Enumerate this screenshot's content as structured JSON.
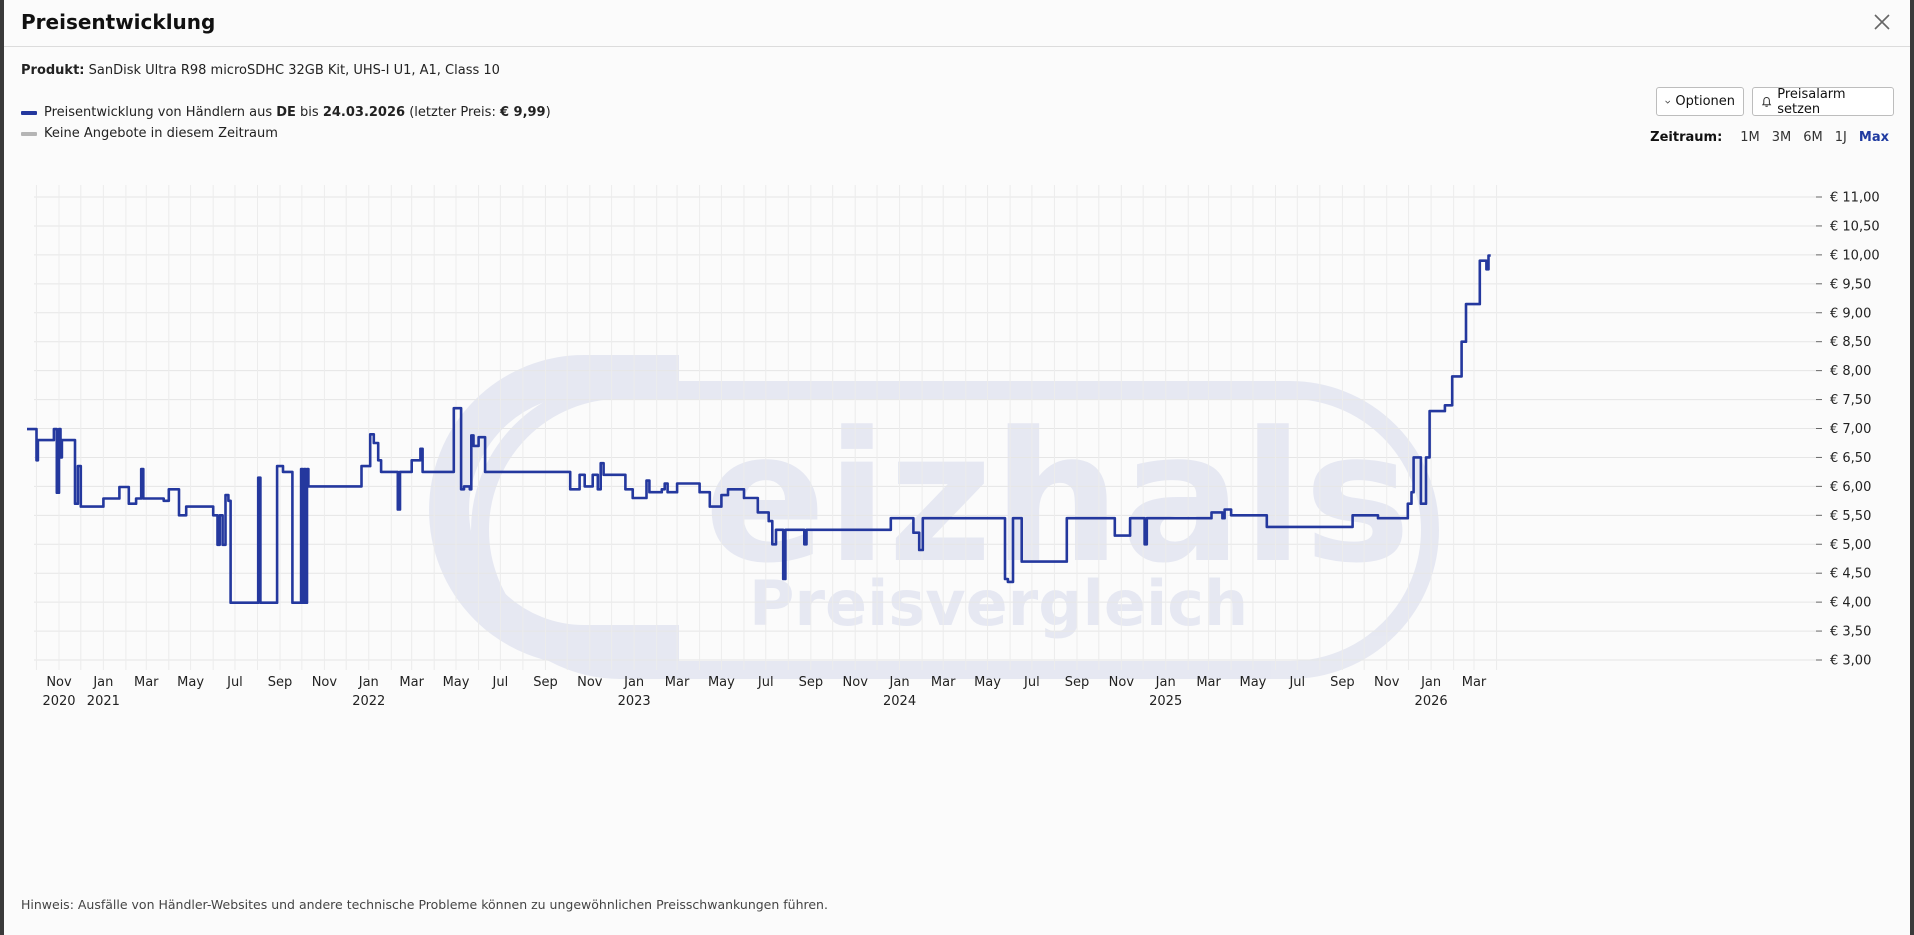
{
  "dialog": {
    "title": "Preisentwicklung",
    "close_icon": "close-icon"
  },
  "product": {
    "label": "Produkt:",
    "name": "SanDisk Ultra R98 microSDHC 32GB Kit, UHS-I U1, A1, Class 10"
  },
  "legend": {
    "line1_prefix": "Preisentwicklung von Händlern aus ",
    "line1_country": "DE",
    "line1_mid": " bis ",
    "line1_date": "24.03.2026",
    "line1_suffix_a": " (letzter Preis: ",
    "line1_price": "€ 9,99",
    "line1_suffix_b": ")",
    "line2": "Keine Angebote in diesem Zeitraum",
    "color_price": "#24389e",
    "color_none": "#b5b5b5"
  },
  "buttons": {
    "options_label": "Optionen",
    "alarm_label": "Preisalarm setzen"
  },
  "zeitraum": {
    "label": "Zeitraum:",
    "options": [
      "1M",
      "3M",
      "6M",
      "1J",
      "Max"
    ],
    "active": "Max"
  },
  "watermark": {
    "brand": "eizhals",
    "sub": "Preisvergleich"
  },
  "hint": "Hinweis: Ausfälle von Händler-Websites und andere technische Probleme können zu ungewöhnlichen Preisschwankungen führen.",
  "chart_data": {
    "type": "line",
    "title": "",
    "xlabel": "",
    "ylabel": "",
    "ylim": [
      3.0,
      11.0
    ],
    "yticks": [
      "€ 3,00",
      "€ 3,50",
      "€ 4,00",
      "€ 4,50",
      "€ 5,00",
      "€ 5,50",
      "€ 6,00",
      "€ 6,50",
      "€ 7,00",
      "€ 7,50",
      "€ 8,00",
      "€ 8,50",
      "€ 9,00",
      "€ 9,50",
      "€ 10,00",
      "€ 10,50",
      "€ 11,00"
    ],
    "xticks": [
      {
        "month": "Nov",
        "year": "2020"
      },
      {
        "month": "Jan",
        "year": "2021"
      },
      {
        "month": "Mar",
        "year": ""
      },
      {
        "month": "May",
        "year": ""
      },
      {
        "month": "Jul",
        "year": ""
      },
      {
        "month": "Sep",
        "year": ""
      },
      {
        "month": "Nov",
        "year": ""
      },
      {
        "month": "Jan",
        "year": "2022"
      },
      {
        "month": "Mar",
        "year": ""
      },
      {
        "month": "May",
        "year": ""
      },
      {
        "month": "Jul",
        "year": ""
      },
      {
        "month": "Sep",
        "year": ""
      },
      {
        "month": "Nov",
        "year": ""
      },
      {
        "month": "Jan",
        "year": "2023"
      },
      {
        "month": "Mar",
        "year": ""
      },
      {
        "month": "May",
        "year": ""
      },
      {
        "month": "Jul",
        "year": ""
      },
      {
        "month": "Sep",
        "year": ""
      },
      {
        "month": "Nov",
        "year": ""
      },
      {
        "month": "Jan",
        "year": "2024"
      },
      {
        "month": "Mar",
        "year": ""
      },
      {
        "month": "May",
        "year": ""
      },
      {
        "month": "Jul",
        "year": ""
      },
      {
        "month": "Sep",
        "year": ""
      },
      {
        "month": "Nov",
        "year": ""
      },
      {
        "month": "Jan",
        "year": "2025"
      },
      {
        "month": "Mar",
        "year": ""
      },
      {
        "month": "May",
        "year": ""
      },
      {
        "month": "Jul",
        "year": ""
      },
      {
        "month": "Sep",
        "year": ""
      },
      {
        "month": "Nov",
        "year": ""
      },
      {
        "month": "Jan",
        "year": "2026"
      },
      {
        "month": "Mar",
        "year": ""
      }
    ],
    "grid": true,
    "series": [
      {
        "values": [
          [
            "2020-09-18",
            6.99
          ],
          [
            "2020-09-29",
            6.99
          ],
          [
            "2020-10-01",
            6.45
          ],
          [
            "2020-10-03",
            6.8
          ],
          [
            "2020-10-22",
            6.8
          ],
          [
            "2020-10-25",
            6.99
          ],
          [
            "2020-10-29",
            5.89
          ],
          [
            "2020-11-01",
            6.99
          ],
          [
            "2020-11-03",
            6.5
          ],
          [
            "2020-11-05",
            6.8
          ],
          [
            "2020-11-20",
            6.8
          ],
          [
            "2020-11-23",
            5.7
          ],
          [
            "2020-11-27",
            6.35
          ],
          [
            "2020-12-01",
            5.65
          ],
          [
            "2020-12-30",
            5.65
          ],
          [
            "2021-01-01",
            5.79
          ],
          [
            "2021-01-20",
            5.79
          ],
          [
            "2021-01-23",
            5.99
          ],
          [
            "2021-02-02",
            5.99
          ],
          [
            "2021-02-05",
            5.7
          ],
          [
            "2021-02-15",
            5.79
          ],
          [
            "2021-02-22",
            6.3
          ],
          [
            "2021-02-25",
            5.79
          ],
          [
            "2021-03-20",
            5.79
          ],
          [
            "2021-03-25",
            5.75
          ],
          [
            "2021-04-01",
            5.95
          ],
          [
            "2021-04-12",
            5.95
          ],
          [
            "2021-04-15",
            5.5
          ],
          [
            "2021-04-25",
            5.65
          ],
          [
            "2021-05-25",
            5.65
          ],
          [
            "2021-06-01",
            5.5
          ],
          [
            "2021-06-07",
            4.99
          ],
          [
            "2021-06-10",
            5.5
          ],
          [
            "2021-06-14",
            4.99
          ],
          [
            "2021-06-18",
            5.85
          ],
          [
            "2021-06-22",
            5.75
          ],
          [
            "2021-06-25",
            3.99
          ],
          [
            "2021-07-30",
            3.99
          ],
          [
            "2021-08-02",
            6.15
          ],
          [
            "2021-08-05",
            3.99
          ],
          [
            "2021-08-25",
            3.99
          ],
          [
            "2021-08-28",
            6.35
          ],
          [
            "2021-09-05",
            6.25
          ],
          [
            "2021-09-15",
            6.25
          ],
          [
            "2021-09-18",
            3.99
          ],
          [
            "2021-09-28",
            3.99
          ],
          [
            "2021-09-30",
            6.3
          ],
          [
            "2021-10-02",
            3.99
          ],
          [
            "2021-10-04",
            6.3
          ],
          [
            "2021-10-06",
            3.99
          ],
          [
            "2021-10-08",
            6.3
          ],
          [
            "2021-10-10",
            6.0
          ],
          [
            "2021-12-20",
            6.0
          ],
          [
            "2021-12-22",
            6.35
          ],
          [
            "2021-12-30",
            6.35
          ],
          [
            "2022-01-03",
            6.9
          ],
          [
            "2022-01-08",
            6.75
          ],
          [
            "2022-01-14",
            6.45
          ],
          [
            "2022-01-18",
            6.25
          ],
          [
            "2022-01-25",
            6.25
          ],
          [
            "2022-02-08",
            6.25
          ],
          [
            "2022-02-10",
            5.6
          ],
          [
            "2022-02-13",
            6.25
          ],
          [
            "2022-02-25",
            6.25
          ],
          [
            "2022-03-01",
            6.45
          ],
          [
            "2022-03-10",
            6.45
          ],
          [
            "2022-03-13",
            6.65
          ],
          [
            "2022-03-16",
            6.25
          ],
          [
            "2022-04-25",
            6.25
          ],
          [
            "2022-04-28",
            7.35
          ],
          [
            "2022-05-05",
            7.35
          ],
          [
            "2022-05-08",
            5.95
          ],
          [
            "2022-05-12",
            6.0
          ],
          [
            "2022-05-20",
            5.95
          ],
          [
            "2022-05-22",
            6.88
          ],
          [
            "2022-05-25",
            6.7
          ],
          [
            "2022-06-01",
            6.85
          ],
          [
            "2022-06-06",
            6.85
          ],
          [
            "2022-06-10",
            6.25
          ],
          [
            "2022-07-01",
            6.25
          ],
          [
            "2022-07-10",
            6.25
          ],
          [
            "2022-07-20",
            6.25
          ],
          [
            "2022-10-01",
            6.25
          ],
          [
            "2022-10-05",
            5.95
          ],
          [
            "2022-10-15",
            5.95
          ],
          [
            "2022-10-18",
            6.2
          ],
          [
            "2022-10-25",
            6.0
          ],
          [
            "2022-11-05",
            6.2
          ],
          [
            "2022-11-12",
            5.95
          ],
          [
            "2022-11-16",
            6.4
          ],
          [
            "2022-11-20",
            6.2
          ],
          [
            "2022-12-01",
            6.2
          ],
          [
            "2022-12-20",
            5.95
          ],
          [
            "2022-12-30",
            5.8
          ],
          [
            "2023-01-15",
            5.8
          ],
          [
            "2023-01-18",
            6.1
          ],
          [
            "2023-01-22",
            5.9
          ],
          [
            "2023-02-08",
            5.95
          ],
          [
            "2023-02-12",
            6.05
          ],
          [
            "2023-02-16",
            5.9
          ],
          [
            "2023-03-01",
            6.05
          ],
          [
            "2023-04-01",
            5.9
          ],
          [
            "2023-04-10",
            5.9
          ],
          [
            "2023-04-15",
            5.65
          ],
          [
            "2023-05-01",
            5.85
          ],
          [
            "2023-05-10",
            5.95
          ],
          [
            "2023-06-01",
            5.8
          ],
          [
            "2023-06-20",
            5.55
          ],
          [
            "2023-07-05",
            5.4
          ],
          [
            "2023-07-10",
            5.0
          ],
          [
            "2023-07-15",
            5.25
          ],
          [
            "2023-07-22",
            5.25
          ],
          [
            "2023-07-25",
            4.4
          ],
          [
            "2023-07-28",
            5.25
          ],
          [
            "2023-08-20",
            5.25
          ],
          [
            "2023-08-23",
            5.0
          ],
          [
            "2023-08-26",
            5.25
          ],
          [
            "2023-09-20",
            5.25
          ],
          [
            "2023-12-01",
            5.25
          ],
          [
            "2023-12-15",
            5.25
          ],
          [
            "2023-12-20",
            5.45
          ],
          [
            "2024-01-10",
            5.45
          ],
          [
            "2024-01-20",
            5.2
          ],
          [
            "2024-01-28",
            4.9
          ],
          [
            "2024-02-02",
            5.45
          ],
          [
            "2024-05-01",
            5.45
          ],
          [
            "2024-05-20",
            5.45
          ],
          [
            "2024-05-25",
            4.4
          ],
          [
            "2024-05-29",
            4.35
          ],
          [
            "2024-06-05",
            5.45
          ],
          [
            "2024-06-14",
            5.45
          ],
          [
            "2024-06-17",
            4.7
          ],
          [
            "2024-08-15",
            4.7
          ],
          [
            "2024-08-18",
            5.45
          ],
          [
            "2024-10-20",
            5.45
          ],
          [
            "2024-10-23",
            5.15
          ],
          [
            "2024-11-10",
            5.15
          ],
          [
            "2024-11-13",
            5.45
          ],
          [
            "2024-12-01",
            5.45
          ],
          [
            "2024-12-03",
            5.0
          ],
          [
            "2024-12-06",
            5.45
          ],
          [
            "2025-03-01",
            5.45
          ],
          [
            "2025-03-05",
            5.55
          ],
          [
            "2025-03-20",
            5.45
          ],
          [
            "2025-03-23",
            5.6
          ],
          [
            "2025-04-01",
            5.5
          ],
          [
            "2025-05-15",
            5.5
          ],
          [
            "2025-05-20",
            5.3
          ],
          [
            "2025-06-20",
            5.3
          ],
          [
            "2025-07-05",
            5.3
          ],
          [
            "2025-09-05",
            5.3
          ],
          [
            "2025-09-15",
            5.5
          ],
          [
            "2025-10-20",
            5.45
          ],
          [
            "2025-11-28",
            5.45
          ],
          [
            "2025-11-30",
            5.7
          ],
          [
            "2025-12-05",
            5.9
          ],
          [
            "2025-12-08",
            6.5
          ],
          [
            "2025-12-15",
            6.5
          ],
          [
            "2025-12-18",
            5.7
          ],
          [
            "2025-12-25",
            6.5
          ],
          [
            "2025-12-30",
            7.3
          ],
          [
            "2026-01-20",
            7.4
          ],
          [
            "2026-01-30",
            7.9
          ],
          [
            "2026-02-10",
            7.9
          ],
          [
            "2026-02-12",
            8.5
          ],
          [
            "2026-02-18",
            9.15
          ],
          [
            "2026-03-05",
            9.15
          ],
          [
            "2026-03-09",
            9.9
          ],
          [
            "2026-03-15",
            9.9
          ],
          [
            "2026-03-18",
            9.75
          ],
          [
            "2026-03-21",
            9.99
          ],
          [
            "2026-03-24",
            9.99
          ]
        ]
      }
    ]
  }
}
